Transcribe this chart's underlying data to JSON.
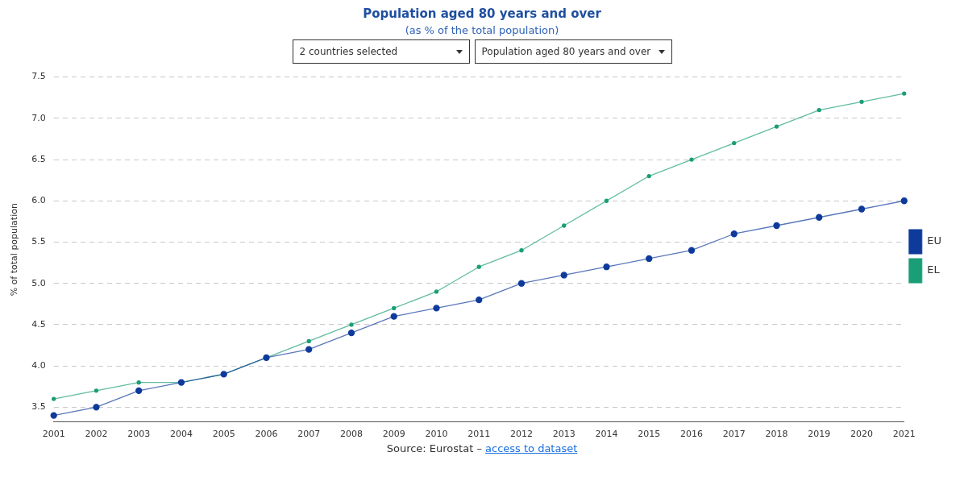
{
  "chart_data": {
    "type": "line",
    "title": "Population aged 80 years and over",
    "subtitle": "(as % of the total population)",
    "ylabel": "% of total population",
    "annotations": [
      "2 countries selected",
      "Population aged 80 years and over",
      "Source: Eurostat – ",
      "access to dataset"
    ],
    "categories": [
      "2001",
      "2002",
      "2003",
      "2004",
      "2005",
      "2006",
      "2007",
      "2008",
      "2009",
      "2010",
      "2011",
      "2012",
      "2013",
      "2014",
      "2015",
      "2016",
      "2017",
      "2018",
      "2019",
      "2020",
      "2021"
    ],
    "series": [
      {
        "name": "EU",
        "color": "#0e3a9b",
        "values": [
          3.4,
          3.5,
          3.7,
          3.8,
          3.9,
          4.1,
          4.2,
          4.4,
          4.6,
          4.7,
          4.8,
          5.0,
          5.1,
          5.2,
          5.3,
          5.4,
          5.6,
          5.7,
          5.8,
          5.9,
          6.0
        ]
      },
      {
        "name": "EL",
        "color": "#1a9e77",
        "values": [
          3.6,
          3.7,
          3.8,
          3.8,
          3.9,
          4.1,
          4.3,
          4.5,
          4.7,
          4.9,
          5.2,
          5.4,
          5.7,
          6.0,
          6.3,
          6.5,
          6.7,
          6.9,
          7.1,
          7.2,
          7.3
        ]
      }
    ],
    "ylim": [
      3.32,
      7.5
    ],
    "yticks": [
      3.5,
      {
        "value": 4,
        "label": "4.0"
      },
      4.5,
      {
        "value": 5,
        "label": "5.0"
      },
      5.5,
      {
        "value": 6,
        "label": "6.0"
      },
      6.5,
      {
        "value": 7,
        "label": "7.0"
      },
      7.5
    ],
    "grid": "y",
    "legend": "right",
    "marker": "circle",
    "line_style": "solid"
  }
}
